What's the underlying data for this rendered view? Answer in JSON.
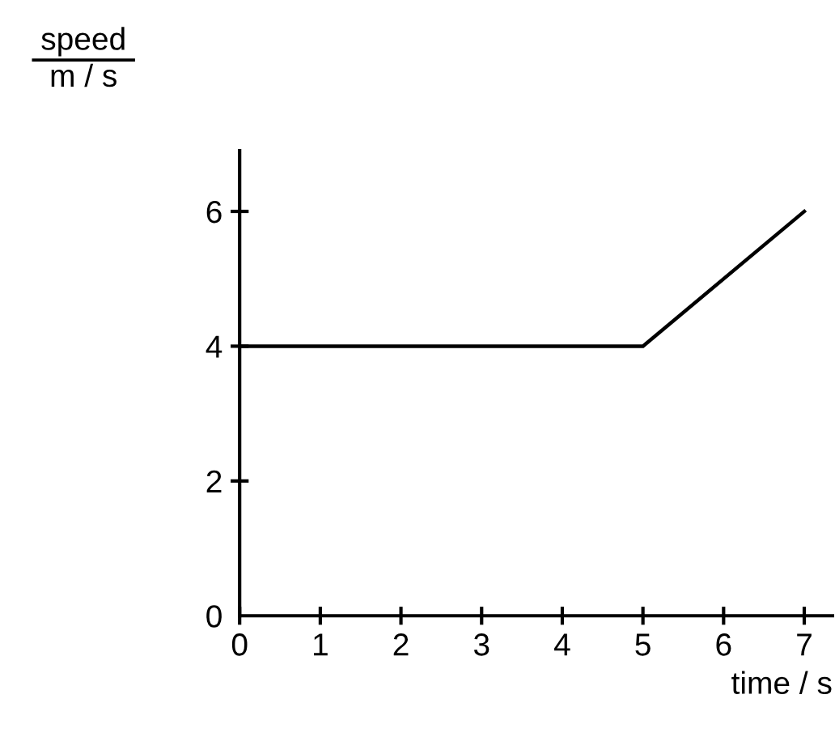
{
  "chart_data": {
    "type": "line",
    "xlabel": "time / s",
    "ylabel": "speed\nm / s",
    "x": [
      0,
      5,
      7
    ],
    "series": [
      {
        "color": "#000000",
        "values": [
          4,
          4,
          6
        ]
      }
    ],
    "xlim": [
      0,
      7.35
    ],
    "ylim": [
      0,
      6.9
    ],
    "xticks": [
      0,
      1,
      2,
      3,
      4,
      5,
      6,
      7
    ],
    "yticks": [
      0,
      2,
      4,
      6
    ],
    "grid": false,
    "marker": "none",
    "line_style": "solid"
  }
}
